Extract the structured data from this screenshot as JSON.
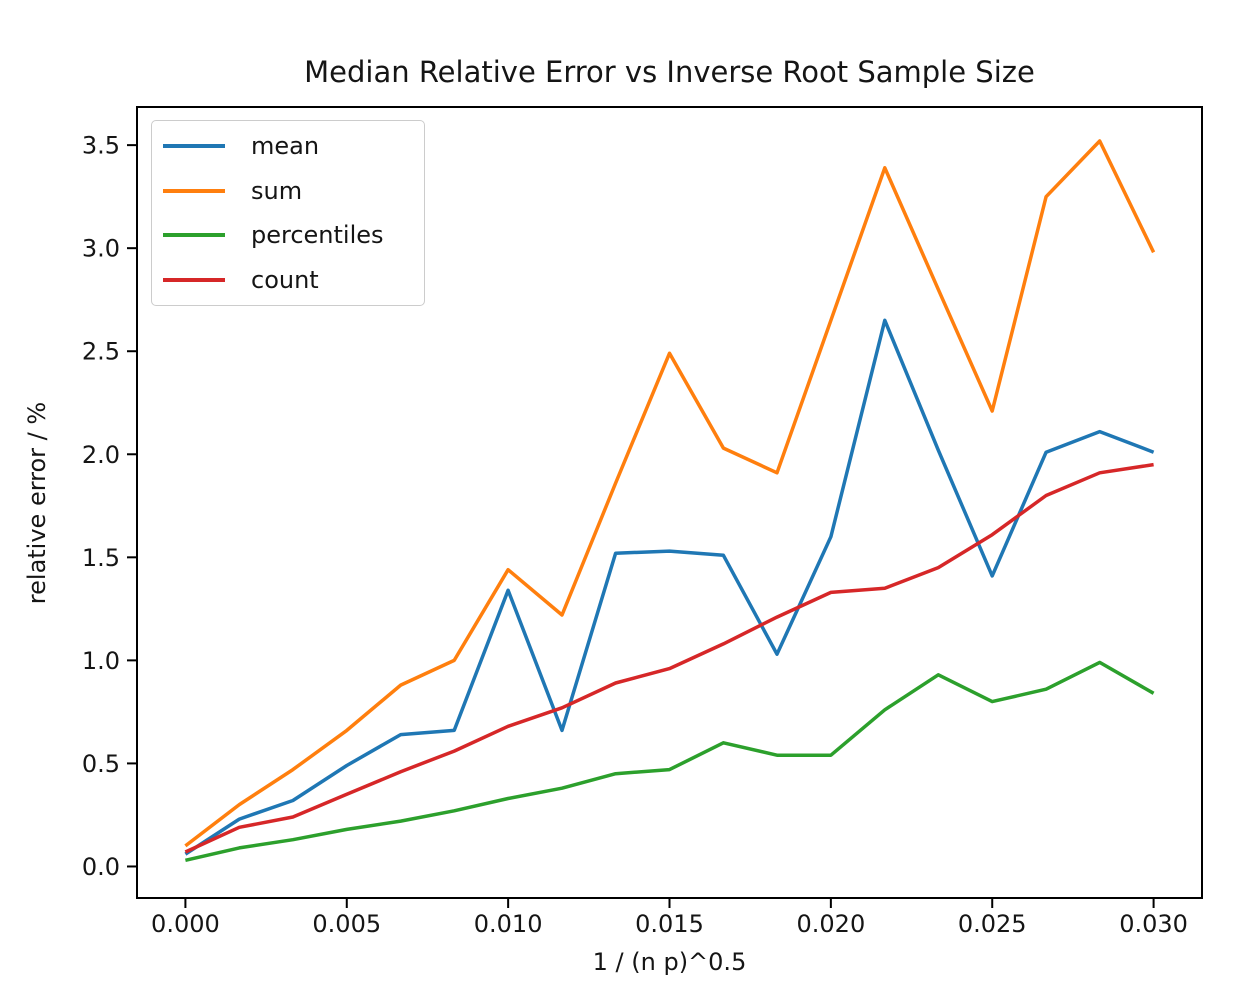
{
  "chart_data": {
    "type": "line",
    "title": "Median Relative Error vs Inverse Root Sample Size",
    "xlabel": "1 / (n p)^0.5",
    "ylabel": "relative error / %",
    "grid": false,
    "legend_position": "upper left",
    "xlim": [
      -0.0015,
      0.0315
    ],
    "ylim": [
      -0.153,
      3.685
    ],
    "x_ticks": {
      "values": [
        0.0,
        0.005,
        0.01,
        0.015,
        0.02,
        0.025,
        0.03
      ],
      "labels": [
        "0.000",
        "0.005",
        "0.010",
        "0.015",
        "0.020",
        "0.025",
        "0.030"
      ]
    },
    "y_ticks": {
      "values": [
        0.0,
        0.5,
        1.0,
        1.5,
        2.0,
        2.5,
        3.0,
        3.5
      ],
      "labels": [
        "0.0",
        "0.5",
        "1.0",
        "1.5",
        "2.0",
        "2.5",
        "3.0",
        "3.5"
      ]
    },
    "x": [
      0.0,
      0.00167,
      0.00333,
      0.005,
      0.00667,
      0.00833,
      0.01,
      0.01167,
      0.01333,
      0.015,
      0.01667,
      0.01833,
      0.02,
      0.02167,
      0.02333,
      0.025,
      0.02667,
      0.02833,
      0.03
    ],
    "series": [
      {
        "name": "mean",
        "color": "#1f77b4",
        "values": [
          0.06,
          0.23,
          0.32,
          0.49,
          0.64,
          0.66,
          1.34,
          0.66,
          1.52,
          1.53,
          1.51,
          1.03,
          1.6,
          2.65,
          2.02,
          1.41,
          2.01,
          2.11,
          2.01
        ]
      },
      {
        "name": "sum",
        "color": "#ff7f0e",
        "values": [
          0.1,
          0.3,
          0.47,
          0.66,
          0.88,
          1.0,
          1.44,
          1.22,
          1.86,
          2.49,
          2.03,
          1.91,
          2.65,
          3.39,
          2.8,
          2.21,
          3.25,
          3.52,
          2.98
        ]
      },
      {
        "name": "percentiles",
        "color": "#2ca02c",
        "values": [
          0.03,
          0.09,
          0.13,
          0.18,
          0.22,
          0.27,
          0.33,
          0.38,
          0.45,
          0.47,
          0.6,
          0.54,
          0.54,
          0.76,
          0.93,
          0.8,
          0.86,
          0.99,
          0.84
        ]
      },
      {
        "name": "count",
        "color": "#d62728",
        "values": [
          0.07,
          0.19,
          0.24,
          0.35,
          0.46,
          0.56,
          0.68,
          0.77,
          0.89,
          0.96,
          1.08,
          1.21,
          1.33,
          1.35,
          1.45,
          1.61,
          1.8,
          1.91,
          1.95
        ]
      }
    ]
  }
}
